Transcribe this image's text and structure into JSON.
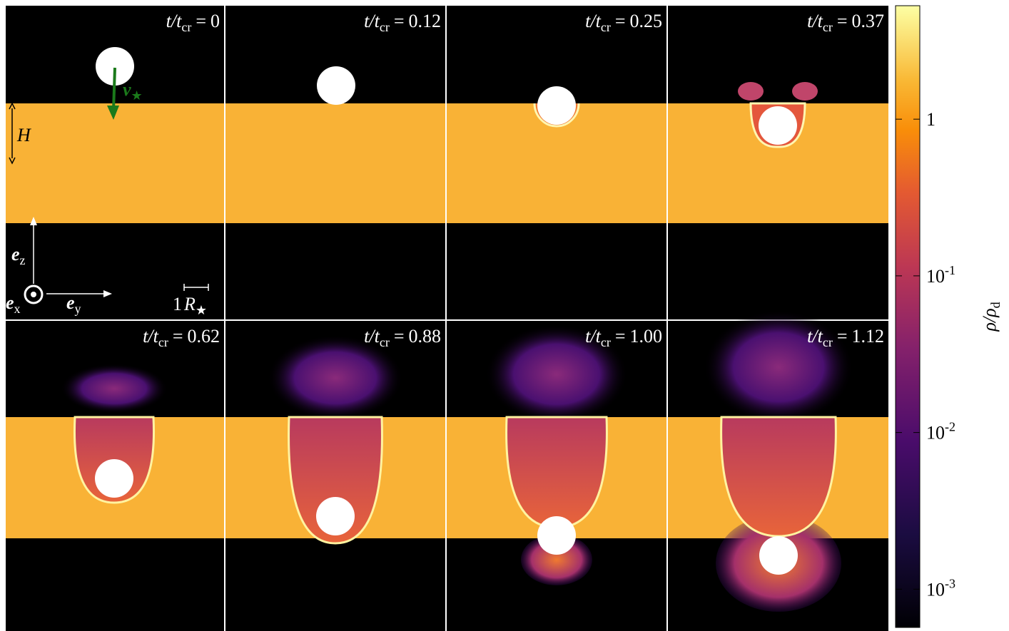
{
  "time_symbol": "t/t",
  "time_subscript": "cr",
  "equals": "=",
  "panels": [
    {
      "time": "0"
    },
    {
      "time": "0.12"
    },
    {
      "time": "0.25"
    },
    {
      "time": "0.37"
    },
    {
      "time": "0.62"
    },
    {
      "time": "0.88"
    },
    {
      "time": "1.00"
    },
    {
      "time": "1.12"
    }
  ],
  "annotations": {
    "height": "H",
    "velocity": {
      "symbol": "v",
      "subscript": "★"
    },
    "e_z": {
      "symbol": "e",
      "subscript": "z"
    },
    "e_x": {
      "symbol": "e",
      "subscript": "x"
    },
    "e_y": {
      "symbol": "e",
      "subscript": "y"
    },
    "scale": {
      "number": "1",
      "symbol": "R",
      "subscript": "★"
    }
  },
  "colorbar": {
    "label": {
      "symbol": "ρ/ρ",
      "subscript": "d"
    },
    "log_scale": true,
    "lim": [
      0.00057,
      5.3
    ],
    "ticks": [
      {
        "value": 1,
        "label": "1"
      },
      {
        "value": 0.1,
        "label": "10",
        "exponent": "-1"
      },
      {
        "value": 0.01,
        "label": "10",
        "exponent": "-2"
      },
      {
        "value": 0.001,
        "label": "10",
        "exponent": "-3"
      }
    ]
  }
}
